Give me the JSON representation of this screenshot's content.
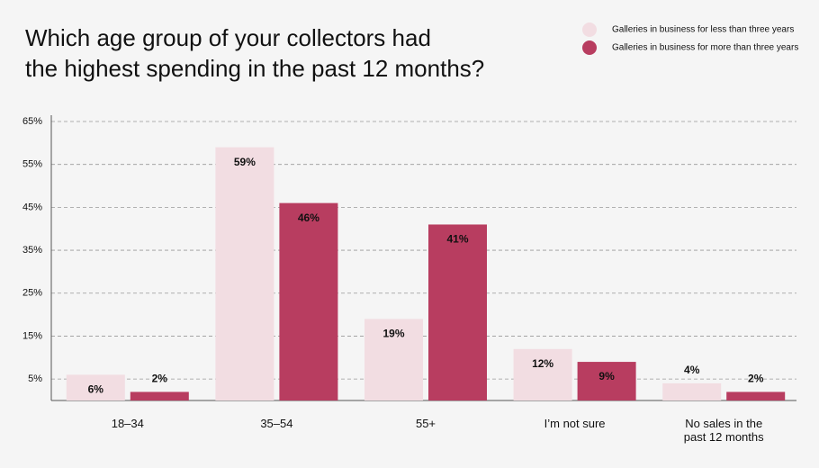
{
  "chart_data": {
    "type": "bar",
    "title": [
      "Which age group of your collectors had",
      "the highest spending in the past 12 months?"
    ],
    "categories": [
      "18–34",
      "35–54",
      "55+",
      "I’m not sure",
      "No sales in the past 12 months"
    ],
    "series": [
      {
        "name": "Galleries in business for less than three years",
        "color": "#f2dde2",
        "values": [
          6,
          59,
          19,
          12,
          4
        ],
        "value_labels": [
          "6%",
          "59%",
          "19%",
          "12%",
          "4%"
        ]
      },
      {
        "name": "Galleries in business for more than three years",
        "color": "#b83d60",
        "values": [
          2,
          46,
          41,
          9,
          2
        ],
        "value_labels": [
          "2%",
          "46%",
          "41%",
          "9%",
          "2%"
        ]
      }
    ],
    "ylim": [
      0,
      65
    ],
    "yticks": [
      {
        "value": 5,
        "label": "5%"
      },
      {
        "value": 15,
        "label": "15%"
      },
      {
        "value": 25,
        "label": "25%"
      },
      {
        "value": 35,
        "label": "35%"
      },
      {
        "value": 45,
        "label": "45%"
      },
      {
        "value": 55,
        "label": "55%"
      },
      {
        "value": 65,
        "label": "65%"
      }
    ],
    "grid": true
  }
}
